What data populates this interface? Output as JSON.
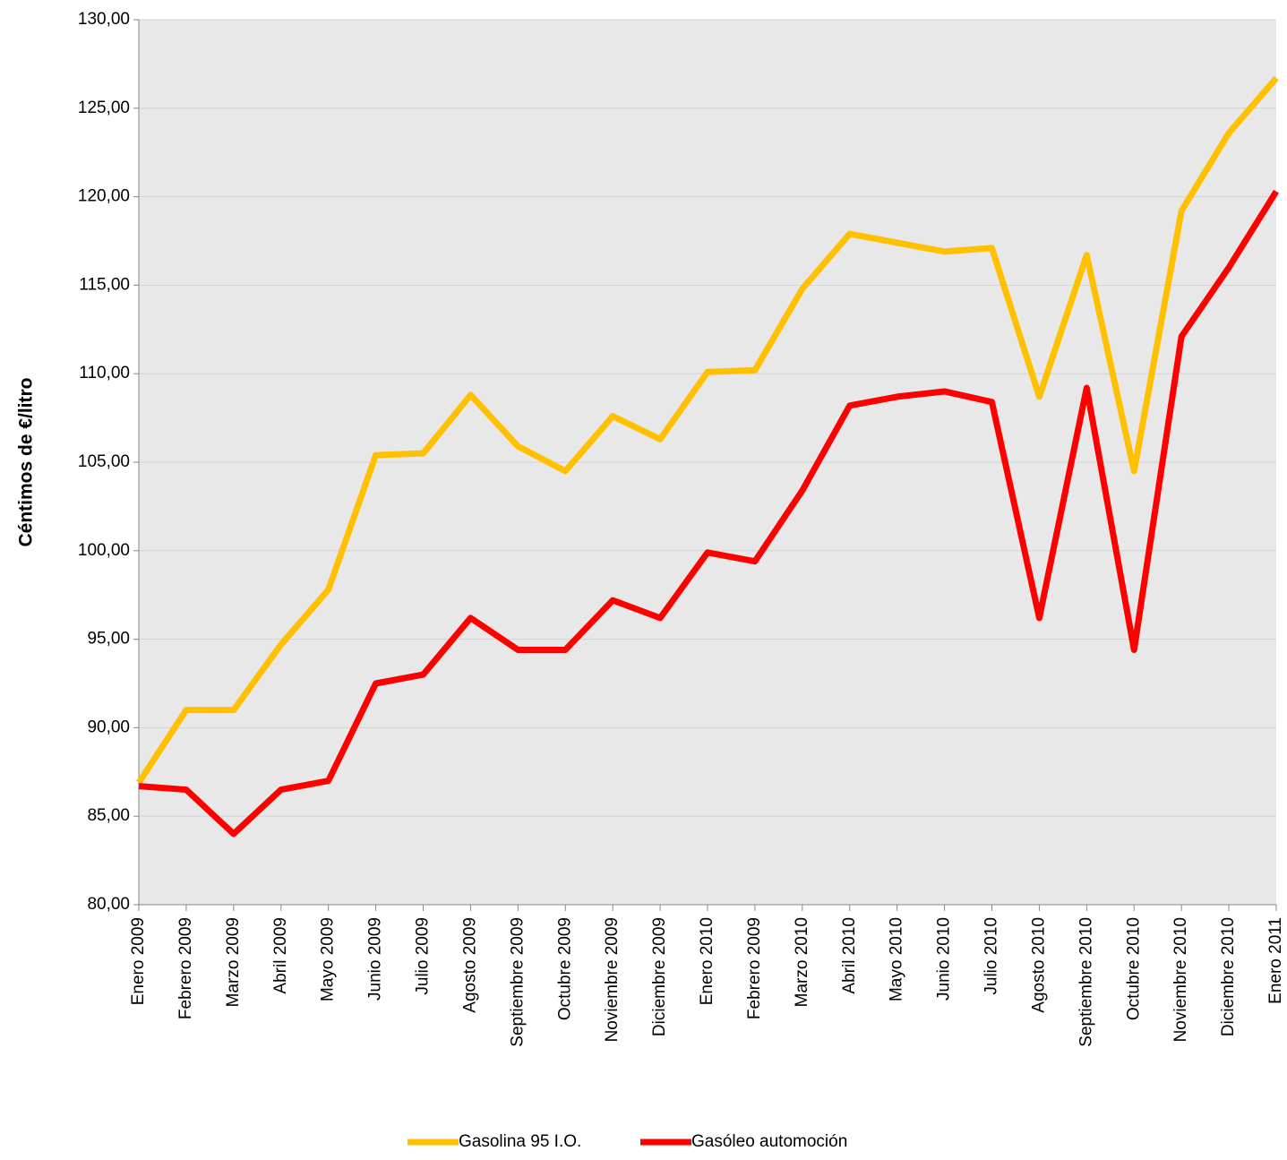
{
  "chart_data": {
    "type": "line",
    "y_label": "Céntimos de €/litro",
    "categories": [
      "Enero 2009",
      "Febrero 2009",
      "Marzo 2009",
      "Abril 2009",
      "Mayo 2009",
      "Junio 2009",
      "Julio 2009",
      "Agosto 2009",
      "Septiembre 2009",
      "Octubre 2009",
      "Noviembre 2009",
      "Diciembre 2009",
      "Enero 2010",
      "Febrero 2009",
      "Marzo 2010",
      "Abril 2010",
      "Mayo 2010",
      "Junio 2010",
      "Julio 2010",
      "Agosto 2010",
      "Septiembre 2010",
      "Octubre 2010",
      "Noviembre 2010",
      "Diciembre 2010",
      "Enero 2011"
    ],
    "series": [
      {
        "name": "Gasolina 95 I.O.",
        "color": "#ffc000",
        "values": [
          86.9,
          91.0,
          91.0,
          94.7,
          97.8,
          105.4,
          105.5,
          108.8,
          105.9,
          104.5,
          107.6,
          106.3,
          110.1,
          110.2,
          114.8,
          117.9,
          117.4,
          116.9,
          117.1,
          108.7,
          116.7,
          104.5,
          119.2,
          123.6,
          126.7
        ]
      },
      {
        "name": "Gasóleo automoción",
        "color": "#ff0000",
        "values": [
          86.7,
          86.5,
          84.0,
          86.5,
          87.0,
          92.5,
          93.0,
          96.2,
          94.4,
          94.4,
          97.2,
          96.2,
          99.9,
          99.4,
          103.4,
          108.2,
          108.7,
          109.0,
          108.4,
          96.2,
          109.2,
          94.4,
          112.1,
          116.0,
          120.3
        ]
      }
    ],
    "ylim": [
      80,
      130
    ],
    "yticks": [
      {
        "value": 80,
        "label": "80,00"
      },
      {
        "value": 85,
        "label": "85,00"
      },
      {
        "value": 90,
        "label": "90,00"
      },
      {
        "value": 95,
        "label": "95,00"
      },
      {
        "value": 100,
        "label": "100,00"
      },
      {
        "value": 105,
        "label": "105,00"
      },
      {
        "value": 110,
        "label": "110,00"
      },
      {
        "value": 115,
        "label": "115,00"
      },
      {
        "value": 120,
        "label": "120,00"
      },
      {
        "value": 125,
        "label": "125,00"
      },
      {
        "value": 130,
        "label": "130,00"
      }
    ],
    "grid": true,
    "legend": "bottom"
  }
}
